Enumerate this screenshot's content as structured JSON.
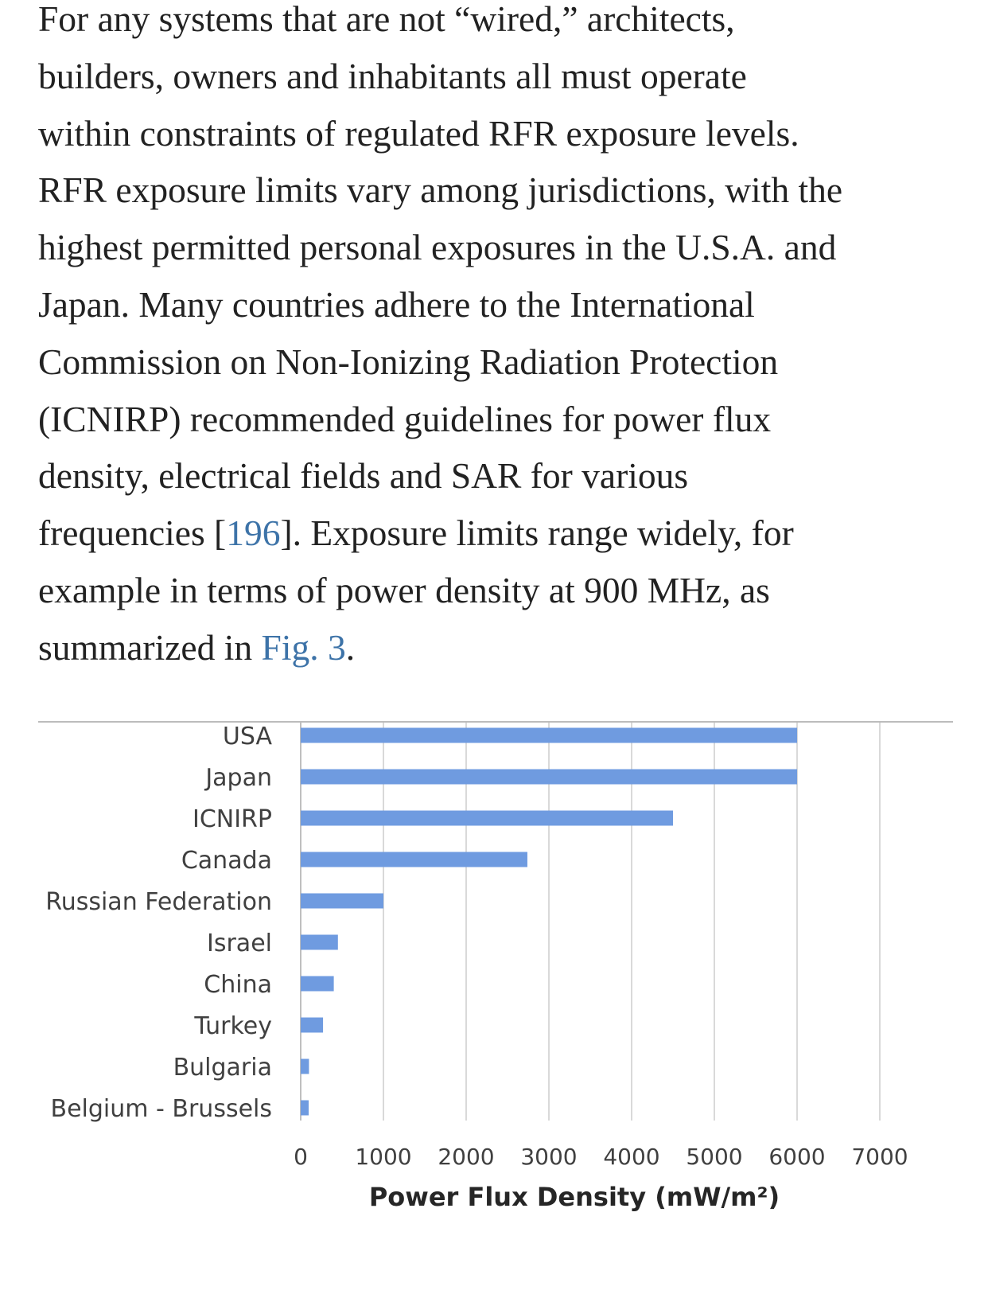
{
  "article": {
    "line1": "For any systems that are not “wired,” architects,",
    "line2": "builders, owners and inhabitants all must operate",
    "line3": "within constraints of regulated RFR exposure levels.",
    "line4": "RFR exposure limits vary among jurisdictions, with the",
    "line5": "highest permitted personal exposures in the U.S.A. and",
    "line6": "Japan. Many countries adhere to the International",
    "line7": "Commission on Non-Ionizing Radiation Protection",
    "line8": "(ICNIRP) recommended guidelines for power flux",
    "line9": "density, electrical fields and SAR for various",
    "line10_pre": "frequencies [",
    "ref_link": "196",
    "line10_post": "]. Exposure limits range widely, for",
    "line11": "example in terms of power density at 900 MHz, as",
    "line12_pre": "summarized in ",
    "fig_link": "Fig. 3",
    "line12_post": "."
  },
  "chart_data": {
    "type": "bar",
    "orientation": "horizontal",
    "categories": [
      "USA",
      "Japan",
      "ICNIRP",
      "Canada",
      "Russian Federation",
      "Israel",
      "China",
      "Turkey",
      "Bulgaria",
      "Belgium - Brussels"
    ],
    "values": [
      6000,
      6000,
      4500,
      2740,
      1000,
      450,
      400,
      270,
      100,
      96
    ],
    "xlabel": "Power Flux Density (mW/m²)",
    "xlim": [
      0,
      7000
    ],
    "xticks": [
      "0",
      "1000",
      "2000",
      "3000",
      "4000",
      "5000",
      "6000",
      "7000"
    ],
    "grid": true,
    "bar_color": "#6f9be0",
    "grid_color": "#d9d9d9"
  }
}
